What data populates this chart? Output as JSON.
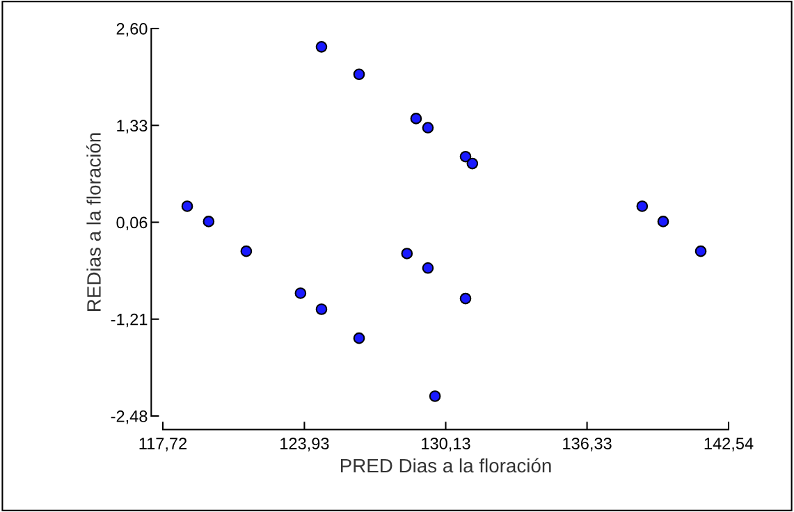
{
  "chart_data": {
    "type": "scatter",
    "xlabel": "PRED Dias a la floración",
    "ylabel": "REDias a la floración",
    "x": [
      118.79,
      119.73,
      121.38,
      123.76,
      124.68,
      124.68,
      126.33,
      126.33,
      128.43,
      128.83,
      129.35,
      129.35,
      129.66,
      131.0,
      131.0,
      131.3,
      138.75,
      139.67,
      141.32
    ],
    "series": [
      {
        "color": "#1a1aff",
        "values": [
          0.27,
          0.07,
          -0.32,
          -0.87,
          -1.08,
          2.36,
          2.0,
          -1.46,
          -0.35,
          1.42,
          1.3,
          -0.54,
          -2.22,
          0.92,
          -0.94,
          0.83,
          0.27,
          0.07,
          -0.32
        ]
      }
    ],
    "xlim": [
      117.72,
      142.54
    ],
    "ylim": [
      -2.48,
      2.6
    ],
    "xticks": [
      {
        "value": 117.72,
        "label": "117,72"
      },
      {
        "value": 123.93,
        "label": "123,93"
      },
      {
        "value": 130.13,
        "label": "130,13"
      },
      {
        "value": 136.33,
        "label": "136,33"
      },
      {
        "value": 142.54,
        "label": "142,54"
      }
    ],
    "yticks": [
      {
        "value": -2.48,
        "label": "-2,48"
      },
      {
        "value": -1.21,
        "label": "-1,21"
      },
      {
        "value": 0.06,
        "label": "0,06"
      },
      {
        "value": 1.33,
        "label": "1,33"
      },
      {
        "value": 2.6,
        "label": "2,60"
      }
    ],
    "grid": false,
    "legend": false,
    "marker": "circle"
  }
}
